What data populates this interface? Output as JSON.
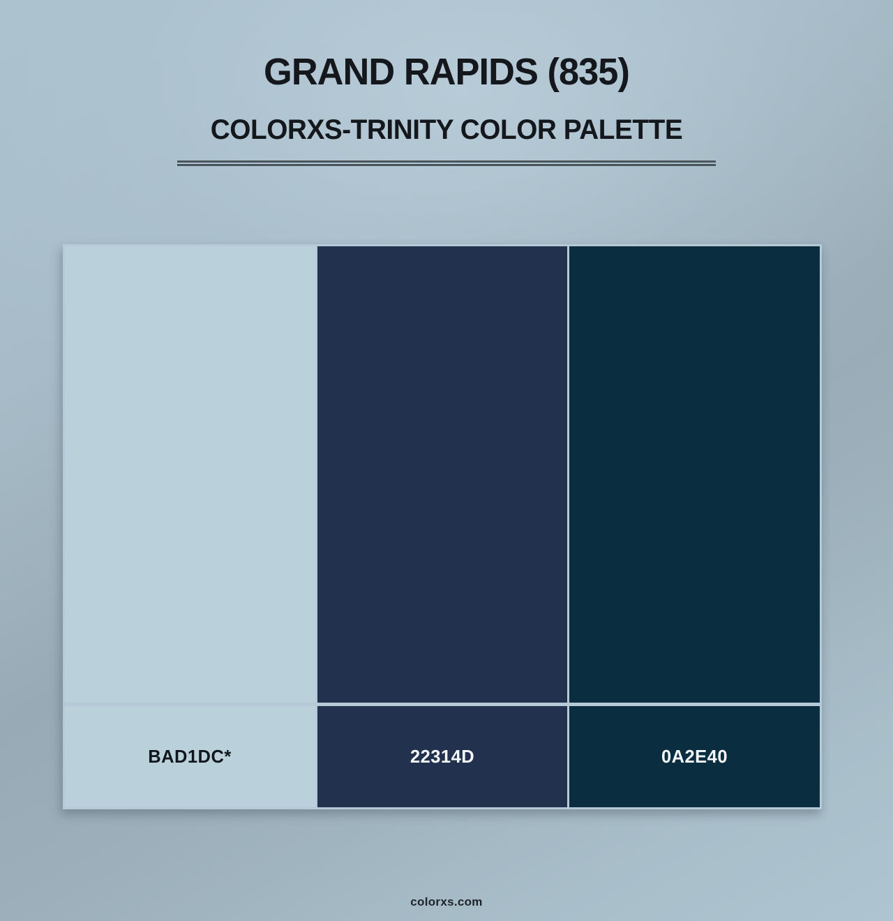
{
  "page": {
    "title": "GRAND RAPIDS (835)",
    "subtitle": "COLORXS-TRINITY COLOR PALETTE",
    "footer": "colorxs.com"
  },
  "palette": {
    "swatches": [
      {
        "hex_label": "BAD1DC*",
        "color": "#BAD1DC",
        "text_color": "#10161c"
      },
      {
        "hex_label": "22314D",
        "color": "#22314D",
        "text_color": "#f5f8fa"
      },
      {
        "hex_label": "0A2E40",
        "color": "#0A2E40",
        "text_color": "#f5f8fa"
      }
    ],
    "separator_color": "#b5cad6"
  }
}
